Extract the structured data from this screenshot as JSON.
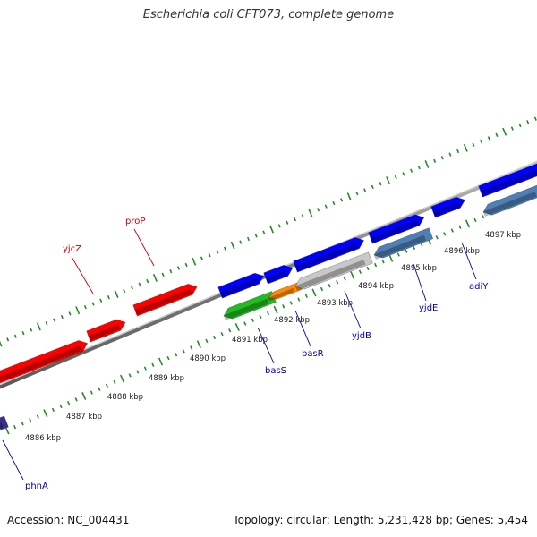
{
  "title": "Escherichia coli CFT073, complete genome",
  "footer": {
    "accession": "Accession: NC_004431",
    "summary": "Topology: circular; Length: 5,231,428 bp; Genes: 5,454"
  },
  "colors": {
    "tick": "#228B22",
    "backbone": "#8a8a8a",
    "red_gene": "#ff0000",
    "blue_gene": "#0000ff",
    "steel_gene": "#4f7fb5",
    "green_gene": "#22bb22",
    "gray_gene": "#c8c8c8",
    "orange_gene": "#ff8c00",
    "purple_gene": "#3a2f8c",
    "label_red": "#cc0000",
    "label_blue": "#0000aa"
  },
  "scale": {
    "unit": "kbp",
    "labels": [
      "4886 kbp",
      "4887 kbp",
      "4888 kbp",
      "4889 kbp",
      "4890 kbp",
      "4891 kbp",
      "4892 kbp",
      "4893 kbp",
      "4894 kbp",
      "4895 kbp",
      "4896 kbp",
      "4897 kbp"
    ]
  },
  "gene_labels": [
    {
      "name": "yjcZ",
      "strand": "forward"
    },
    {
      "name": "proP",
      "strand": "forward"
    },
    {
      "name": "phnA",
      "strand": "reverse"
    },
    {
      "name": "basS",
      "strand": "reverse"
    },
    {
      "name": "basR",
      "strand": "reverse"
    },
    {
      "name": "yjdB",
      "strand": "reverse"
    },
    {
      "name": "yjdE",
      "strand": "reverse"
    },
    {
      "name": "adiY",
      "strand": "reverse"
    }
  ]
}
